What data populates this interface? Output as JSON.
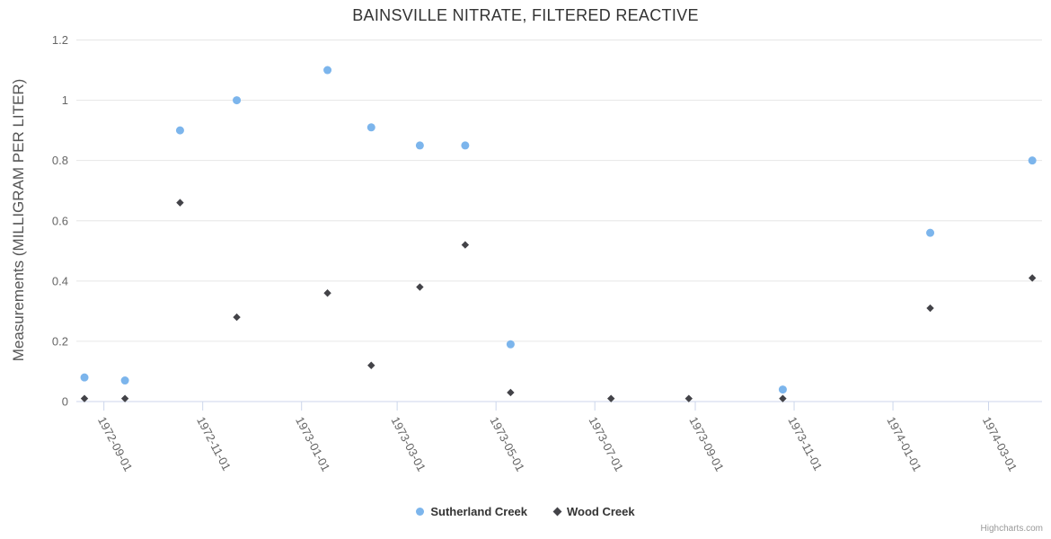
{
  "chart": {
    "title": "BAINSVILLE NITRATE, FILTERED REACTIVE",
    "credits": "Highcharts.com"
  },
  "colors": {
    "series_sutherland": "#7cb5ec",
    "series_wood": "#434348",
    "gridline": "#e6e6e6",
    "axis_line": "#ccd6eb",
    "title_text": "#333333",
    "axis_label_text": "#666666",
    "axis_title_text": "#555555",
    "legend_text": "#333333",
    "credits_text": "#999999"
  },
  "chart_data": {
    "type": "scatter",
    "title": "BAINSVILLE NITRATE, FILTERED REACTIVE",
    "xlabel": "",
    "ylabel": "Measurements (MILLIGRAM PER LITER)",
    "ylim": [
      0,
      1.2
    ],
    "yticks": [
      0,
      0.2,
      0.4,
      0.6,
      0.8,
      1,
      1.2
    ],
    "ytick_labels": [
      "0",
      "0.2",
      "0.4",
      "0.6",
      "0.8",
      "1",
      "1.2"
    ],
    "xtick_labels": [
      "1972-09-01",
      "1972-11-01",
      "1973-01-01",
      "1973-03-01",
      "1973-05-01",
      "1973-07-01",
      "1973-09-01",
      "1973-11-01",
      "1974-01-01",
      "1974-03-01"
    ],
    "xlim": [
      "1972-08-15",
      "1974-04-03"
    ],
    "grid": "horizontal-only",
    "legend_position": "bottom-center",
    "series": [
      {
        "name": "Sutherland Creek",
        "color": "#7cb5ec",
        "marker": "circle",
        "data": [
          [
            "1972-08-20",
            0.08
          ],
          [
            "1972-09-14",
            0.07
          ],
          [
            "1972-10-18",
            0.9
          ],
          [
            "1972-11-22",
            1.0
          ],
          [
            "1973-01-17",
            1.1
          ],
          [
            "1973-02-13",
            0.91
          ],
          [
            "1973-03-15",
            0.85
          ],
          [
            "1973-04-12",
            0.85
          ],
          [
            "1973-05-10",
            0.19
          ],
          [
            "1973-10-25",
            0.04
          ],
          [
            "1974-01-24",
            0.56
          ],
          [
            "1974-03-28",
            0.8
          ]
        ]
      },
      {
        "name": "Wood Creek",
        "color": "#434348",
        "marker": "diamond",
        "data": [
          [
            "1972-08-20",
            0.01
          ],
          [
            "1972-09-14",
            0.01
          ],
          [
            "1972-10-18",
            0.66
          ],
          [
            "1972-11-22",
            0.28
          ],
          [
            "1973-01-17",
            0.36
          ],
          [
            "1973-02-13",
            0.12
          ],
          [
            "1973-03-15",
            0.38
          ],
          [
            "1973-04-12",
            0.52
          ],
          [
            "1973-05-10",
            0.03
          ],
          [
            "1973-07-11",
            0.01
          ],
          [
            "1973-08-28",
            0.01
          ],
          [
            "1973-10-25",
            0.01
          ],
          [
            "1974-01-24",
            0.31
          ],
          [
            "1974-03-28",
            0.41
          ]
        ]
      }
    ]
  }
}
